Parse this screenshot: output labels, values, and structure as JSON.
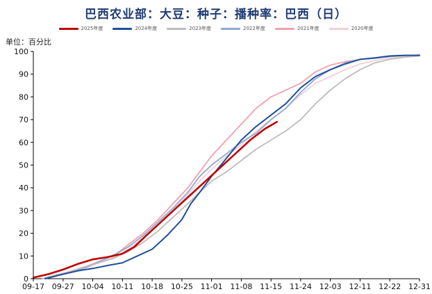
{
  "title": "巴西农业部：大豆：种子：播种率：巴西（日）",
  "unit_label": "单位：百分比",
  "chart_data": {
    "type": "line",
    "title": "巴西农业部：大豆：种子：播种率：巴西（日）",
    "ylabel": "单位：百分比",
    "xlabel": "",
    "x_ticks": [
      "09-17",
      "09-27",
      "10-04",
      "10-11",
      "10-18",
      "10-25",
      "11-01",
      "11-08",
      "11-15",
      "11-24",
      "12-03",
      "12-11",
      "12-22",
      "12-31"
    ],
    "y_ticks": [
      0,
      10,
      20,
      30,
      40,
      50,
      60,
      70,
      80,
      90,
      100
    ],
    "ylim": [
      0,
      100
    ],
    "legend_position": "top",
    "grid": false,
    "series": [
      {
        "name": "2025年度",
        "color": "#c00000",
        "width": 2.6,
        "points": [
          [
            0,
            0.5
          ],
          [
            0.5,
            2
          ],
          [
            1,
            4
          ],
          [
            1.5,
            6.5
          ],
          [
            2,
            8.5
          ],
          [
            2.5,
            9.5
          ],
          [
            3,
            11
          ],
          [
            3.4,
            14
          ],
          [
            3.8,
            19
          ],
          [
            4.3,
            25
          ],
          [
            4.8,
            31
          ],
          [
            5.3,
            37
          ],
          [
            5.8,
            43
          ],
          [
            6.3,
            49
          ],
          [
            6.8,
            55
          ],
          [
            7.3,
            61
          ],
          [
            7.8,
            66
          ],
          [
            8.2,
            69
          ]
        ]
      },
      {
        "name": "2024年度",
        "color": "#1f4e9a",
        "width": 2.0,
        "points": [
          [
            0.4,
            0
          ],
          [
            1,
            2
          ],
          [
            1.5,
            3.5
          ],
          [
            2,
            4.5
          ],
          [
            2.5,
            5.8
          ],
          [
            3,
            7
          ],
          [
            3.5,
            10
          ],
          [
            4,
            13
          ],
          [
            4.5,
            19
          ],
          [
            5,
            26
          ],
          [
            5.3,
            33
          ],
          [
            5.6,
            38
          ],
          [
            6,
            45
          ],
          [
            6.5,
            53
          ],
          [
            7,
            61
          ],
          [
            7.5,
            67
          ],
          [
            8,
            72
          ],
          [
            8.5,
            77
          ],
          [
            9,
            84
          ],
          [
            9.5,
            89
          ],
          [
            10,
            92
          ],
          [
            10.5,
            94.5
          ],
          [
            11,
            96.5
          ],
          [
            11.5,
            97.2
          ],
          [
            12,
            98
          ],
          [
            12.5,
            98.3
          ],
          [
            13,
            98.3
          ]
        ]
      },
      {
        "name": "2023年度",
        "color": "#bcbcbc",
        "width": 1.8,
        "points": [
          [
            0.3,
            0
          ],
          [
            0.7,
            1.5
          ],
          [
            1.2,
            3
          ],
          [
            1.7,
            5
          ],
          [
            2.2,
            7
          ],
          [
            2.7,
            9
          ],
          [
            3.2,
            12
          ],
          [
            3.7,
            16
          ],
          [
            4.2,
            21
          ],
          [
            4.7,
            27
          ],
          [
            5.2,
            33
          ],
          [
            5.6,
            38
          ],
          [
            6,
            43
          ],
          [
            6.5,
            47
          ],
          [
            7,
            52
          ],
          [
            7.5,
            57
          ],
          [
            8,
            61
          ],
          [
            8.5,
            65
          ],
          [
            9,
            70
          ],
          [
            9.5,
            77
          ],
          [
            10,
            83
          ],
          [
            10.5,
            88
          ],
          [
            11,
            92
          ],
          [
            11.5,
            95
          ],
          [
            12,
            96.5
          ],
          [
            12.5,
            97.5
          ],
          [
            13,
            98
          ]
        ]
      },
      {
        "name": "2022年度",
        "color": "#8ea9d0",
        "width": 1.8,
        "points": [
          [
            0.3,
            0
          ],
          [
            0.8,
            1.5
          ],
          [
            1.3,
            3
          ],
          [
            1.8,
            5
          ],
          [
            2.3,
            8
          ],
          [
            2.8,
            11
          ],
          [
            3.2,
            14
          ],
          [
            3.7,
            19
          ],
          [
            4.2,
            25
          ],
          [
            4.7,
            31
          ],
          [
            5.2,
            38
          ],
          [
            5.6,
            45
          ],
          [
            6,
            50
          ],
          [
            6.5,
            55
          ],
          [
            7,
            60
          ],
          [
            7.5,
            64
          ],
          [
            8,
            70
          ],
          [
            8.5,
            75
          ],
          [
            9,
            82
          ],
          [
            9.5,
            88
          ],
          [
            10,
            92
          ],
          [
            10.5,
            95
          ],
          [
            11,
            96.5
          ],
          [
            11.5,
            97
          ],
          [
            12,
            97.8
          ],
          [
            12.5,
            98.2
          ],
          [
            13,
            98.4
          ]
        ]
      },
      {
        "name": "2021年度",
        "color": "#f2a0ae",
        "width": 1.8,
        "points": [
          [
            0.3,
            0
          ],
          [
            0.8,
            1.5
          ],
          [
            1.3,
            3.5
          ],
          [
            1.8,
            5.5
          ],
          [
            2.3,
            8
          ],
          [
            2.8,
            11
          ],
          [
            3.2,
            15
          ],
          [
            3.7,
            20
          ],
          [
            4.2,
            26
          ],
          [
            4.7,
            33
          ],
          [
            5.2,
            40
          ],
          [
            5.6,
            47
          ],
          [
            6,
            54
          ],
          [
            6.5,
            61
          ],
          [
            7,
            68
          ],
          [
            7.5,
            75
          ],
          [
            8,
            80
          ],
          [
            8.5,
            83
          ],
          [
            9,
            86
          ],
          [
            9.5,
            91
          ],
          [
            10,
            94
          ],
          [
            10.5,
            95.5
          ],
          [
            11,
            96.5
          ],
          [
            11.5,
            97
          ],
          [
            12,
            97.8
          ],
          [
            12.5,
            98.2
          ],
          [
            13,
            98.4
          ]
        ]
      },
      {
        "name": "2020年度",
        "color": "#f2d0d6",
        "width": 1.8,
        "points": [
          [
            0.3,
            0
          ],
          [
            0.8,
            1.5
          ],
          [
            1.3,
            3
          ],
          [
            1.8,
            5
          ],
          [
            2.3,
            7.5
          ],
          [
            2.8,
            10
          ],
          [
            3.2,
            13
          ],
          [
            3.7,
            18
          ],
          [
            4.2,
            24
          ],
          [
            4.7,
            30
          ],
          [
            5.2,
            37
          ],
          [
            5.6,
            43
          ],
          [
            6,
            48
          ],
          [
            6.5,
            54
          ],
          [
            7,
            59
          ],
          [
            7.5,
            65
          ],
          [
            8,
            70
          ],
          [
            8.5,
            75
          ],
          [
            9,
            81
          ],
          [
            9.5,
            86
          ],
          [
            10,
            89
          ],
          [
            10.5,
            92
          ],
          [
            11,
            94.5
          ],
          [
            11.5,
            96
          ],
          [
            12,
            97.2
          ],
          [
            12.5,
            98
          ],
          [
            13,
            98.4
          ]
        ]
      }
    ]
  }
}
